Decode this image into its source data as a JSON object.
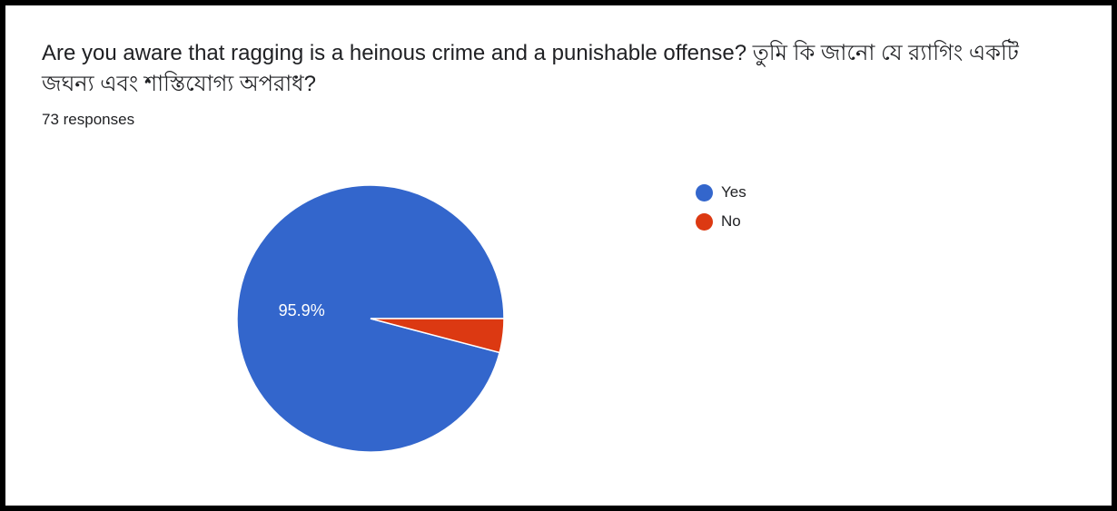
{
  "header": {
    "question": "Are you aware that ragging is a heinous crime and a punishable offense? তুমি কি জানো যে র‍্যাগিং একটি জঘন্য এবং শাস্তিযোগ্য অপরাধ?",
    "responses": "73 responses"
  },
  "chart_data": {
    "type": "pie",
    "title": "Are you aware that ragging is a heinous crime and a punishable offense? তুমি কি জানো যে র‍্যাগিং একটি জঘন্য এবং শাস্তিযোগ্য অপরাধ?",
    "categories": [
      "Yes",
      "No"
    ],
    "values": [
      95.9,
      4.1
    ],
    "unit": "%",
    "colors": [
      "#3366cc",
      "#dc3912"
    ],
    "data_labels": [
      "95.9%",
      ""
    ],
    "legend": {
      "position": "right",
      "entries": [
        "Yes",
        "No"
      ]
    }
  }
}
